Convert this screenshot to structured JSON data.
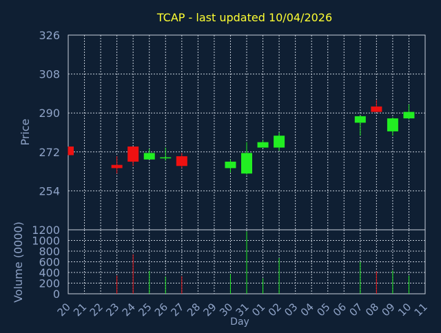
{
  "colors": {
    "background": "#0f1f33",
    "axis_text": "#8fa3c7",
    "title": "#ffff33",
    "grid": "#c8d0dc",
    "up": "#22ee22",
    "down": "#ee1111",
    "wick": "#22ee22"
  },
  "chart_data": [
    {
      "type": "candlestick",
      "title": "TCAP - last updated 10/04/2026",
      "xlabel": "",
      "ylabel": "Price",
      "ylim": [
        236,
        326
      ],
      "yticks": [
        254,
        272,
        290,
        308,
        326
      ],
      "grid": true,
      "categories": [
        "20",
        "21",
        "22",
        "23",
        "24",
        "25",
        "26",
        "27",
        "28",
        "29",
        "30",
        "31",
        "01",
        "02",
        "03",
        "04",
        "05",
        "06",
        "07",
        "08",
        "09",
        "10",
        "11"
      ],
      "candles": [
        {
          "x": "20",
          "open": 274.5,
          "close": 270.5,
          "high": 274.5,
          "low": 270.5
        },
        {
          "x": "23",
          "open": 266.0,
          "close": 264.5,
          "high": 270.0,
          "low": 262.0
        },
        {
          "x": "24",
          "open": 274.5,
          "close": 267.5,
          "high": 274.5,
          "low": 265.5
        },
        {
          "x": "25",
          "open": 268.5,
          "close": 271.5,
          "high": 273.5,
          "low": 268.5
        },
        {
          "x": "26",
          "open": 269.5,
          "close": 269.5,
          "high": 274.0,
          "low": 268.0
        },
        {
          "x": "27",
          "open": 270.0,
          "close": 265.5,
          "high": 271.5,
          "low": 264.5
        },
        {
          "x": "30",
          "open": 264.5,
          "close": 267.5,
          "high": 268.5,
          "low": 262.5
        },
        {
          "x": "31",
          "open": 262.0,
          "close": 271.5,
          "high": 276.5,
          "low": 261.5
        },
        {
          "x": "01",
          "open": 274.0,
          "close": 276.5,
          "high": 277.5,
          "low": 274.0
        },
        {
          "x": "02",
          "open": 274.0,
          "close": 279.5,
          "high": 281.0,
          "low": 272.5
        },
        {
          "x": "07",
          "open": 285.5,
          "close": 288.5,
          "high": 289.0,
          "low": 279.5
        },
        {
          "x": "08",
          "open": 293.0,
          "close": 290.5,
          "high": 296.0,
          "low": 290.5
        },
        {
          "x": "09",
          "open": 281.5,
          "close": 287.5,
          "high": 288.0,
          "low": 279.5
        },
        {
          "x": "10",
          "open": 287.5,
          "close": 290.5,
          "high": 294.0,
          "low": 287.0
        }
      ]
    },
    {
      "type": "bar",
      "title": "",
      "xlabel": "Day",
      "ylabel": "Volume (0000)",
      "ylim": [
        0,
        1200
      ],
      "yticks": [
        0,
        200,
        400,
        600,
        800,
        1000,
        1200
      ],
      "grid": true,
      "categories": [
        "20",
        "21",
        "22",
        "23",
        "24",
        "25",
        "26",
        "27",
        "28",
        "29",
        "30",
        "31",
        "01",
        "02",
        "03",
        "04",
        "05",
        "06",
        "07",
        "08",
        "09",
        "10",
        "11"
      ],
      "series": [
        {
          "values": [
            {
              "x": "23",
              "value": 340,
              "direction": "down"
            },
            {
              "x": "24",
              "value": 740,
              "direction": "down"
            },
            {
              "x": "25",
              "value": 430,
              "direction": "up"
            },
            {
              "x": "26",
              "value": 320,
              "direction": "up"
            },
            {
              "x": "27",
              "value": 330,
              "direction": "down"
            },
            {
              "x": "30",
              "value": 370,
              "direction": "up"
            },
            {
              "x": "31",
              "value": 1170,
              "direction": "up"
            },
            {
              "x": "01",
              "value": 290,
              "direction": "up"
            },
            {
              "x": "02",
              "value": 670,
              "direction": "up"
            },
            {
              "x": "07",
              "value": 600,
              "direction": "up"
            },
            {
              "x": "08",
              "value": 420,
              "direction": "down"
            },
            {
              "x": "09",
              "value": 440,
              "direction": "up"
            },
            {
              "x": "10",
              "value": 340,
              "direction": "up"
            }
          ]
        }
      ]
    }
  ]
}
